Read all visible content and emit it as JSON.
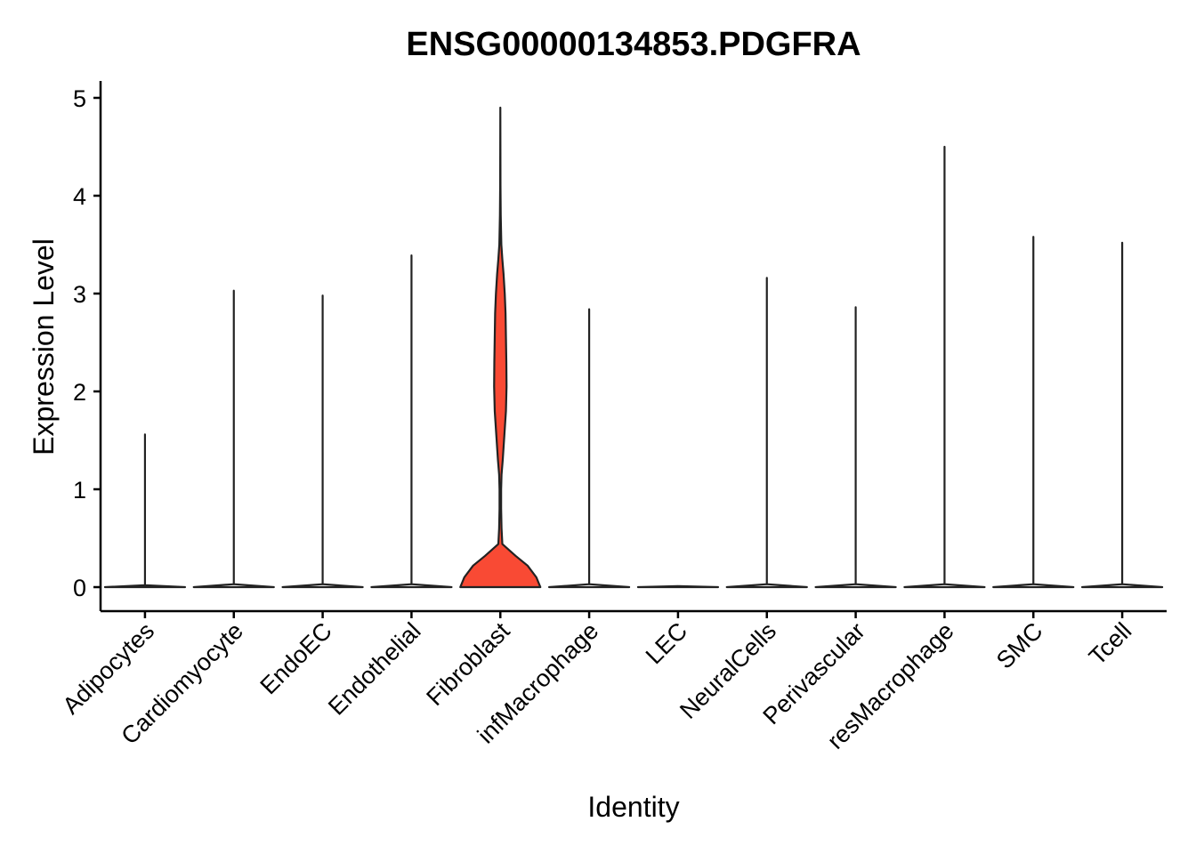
{
  "chart_data": {
    "type": "violin",
    "title": "ENSG00000134853.PDGFRA",
    "xlabel": "Identity",
    "ylabel": "Expression Level",
    "ylim": [
      -0.24,
      5.16
    ],
    "yticks": [
      0,
      1,
      2,
      3,
      4,
      5
    ],
    "grid": false,
    "legend": "none",
    "categories": [
      "Adipocytes",
      "Cardiomyocyte",
      "EndoEC",
      "Endothelial",
      "Fibroblast",
      "infMacrophage",
      "LEC",
      "NeuralCells",
      "Perivascular",
      "resMacrophage",
      "SMC",
      "Tcell"
    ],
    "series": [
      {
        "category": "Adipocytes",
        "max": 1.56,
        "color": "#ffffff",
        "profile": [
          [
            0,
            1.0
          ],
          [
            0.02,
            0.0
          ]
        ]
      },
      {
        "category": "Cardiomyocyte",
        "max": 3.03,
        "color": "#ffffff",
        "profile": [
          [
            0,
            1.0
          ],
          [
            0.03,
            0.0
          ]
        ]
      },
      {
        "category": "EndoEC",
        "max": 2.98,
        "color": "#ffffff",
        "profile": [
          [
            0,
            1.0
          ],
          [
            0.03,
            0.0
          ]
        ]
      },
      {
        "category": "Endothelial",
        "max": 3.39,
        "color": "#ffffff",
        "profile": [
          [
            0,
            1.0
          ],
          [
            0.03,
            0.0
          ]
        ]
      },
      {
        "category": "Fibroblast",
        "max": 4.9,
        "color": "#f94a34",
        "profile": [
          [
            0,
            1.0
          ],
          [
            0.1,
            0.9
          ],
          [
            0.22,
            0.68
          ],
          [
            0.32,
            0.38
          ],
          [
            0.44,
            0.05
          ],
          [
            0.6,
            0.03
          ],
          [
            0.8,
            0.02
          ],
          [
            1.0,
            0.02
          ],
          [
            1.15,
            0.03
          ],
          [
            1.3,
            0.06
          ],
          [
            1.55,
            0.1
          ],
          [
            1.8,
            0.14
          ],
          [
            2.05,
            0.155
          ],
          [
            2.3,
            0.15
          ],
          [
            2.55,
            0.14
          ],
          [
            2.8,
            0.13
          ],
          [
            3.0,
            0.11
          ],
          [
            3.2,
            0.08
          ],
          [
            3.35,
            0.05
          ],
          [
            3.5,
            0.025
          ],
          [
            3.8,
            0.01
          ],
          [
            4.1,
            0.004
          ],
          [
            4.9,
            0.0
          ]
        ]
      },
      {
        "category": "infMacrophage",
        "max": 2.84,
        "color": "#ffffff",
        "profile": [
          [
            0,
            1.0
          ],
          [
            0.03,
            0.0
          ]
        ]
      },
      {
        "category": "LEC",
        "max": 0.0,
        "color": "#ffffff",
        "profile": [
          [
            0,
            1.0
          ],
          [
            0.01,
            0.0
          ]
        ]
      },
      {
        "category": "NeuralCells",
        "max": 3.16,
        "color": "#ffffff",
        "profile": [
          [
            0,
            1.0
          ],
          [
            0.03,
            0.0
          ]
        ]
      },
      {
        "category": "Perivascular",
        "max": 2.86,
        "color": "#ffffff",
        "profile": [
          [
            0,
            1.0
          ],
          [
            0.03,
            0.0
          ]
        ]
      },
      {
        "category": "resMacrophage",
        "max": 4.5,
        "color": "#ffffff",
        "profile": [
          [
            0,
            1.0
          ],
          [
            0.03,
            0.0
          ]
        ]
      },
      {
        "category": "SMC",
        "max": 3.58,
        "color": "#ffffff",
        "profile": [
          [
            0,
            1.0
          ],
          [
            0.03,
            0.0
          ]
        ]
      },
      {
        "category": "Tcell",
        "max": 3.52,
        "color": "#ffffff",
        "profile": [
          [
            0,
            1.0
          ],
          [
            0.03,
            0.0
          ]
        ]
      }
    ]
  }
}
